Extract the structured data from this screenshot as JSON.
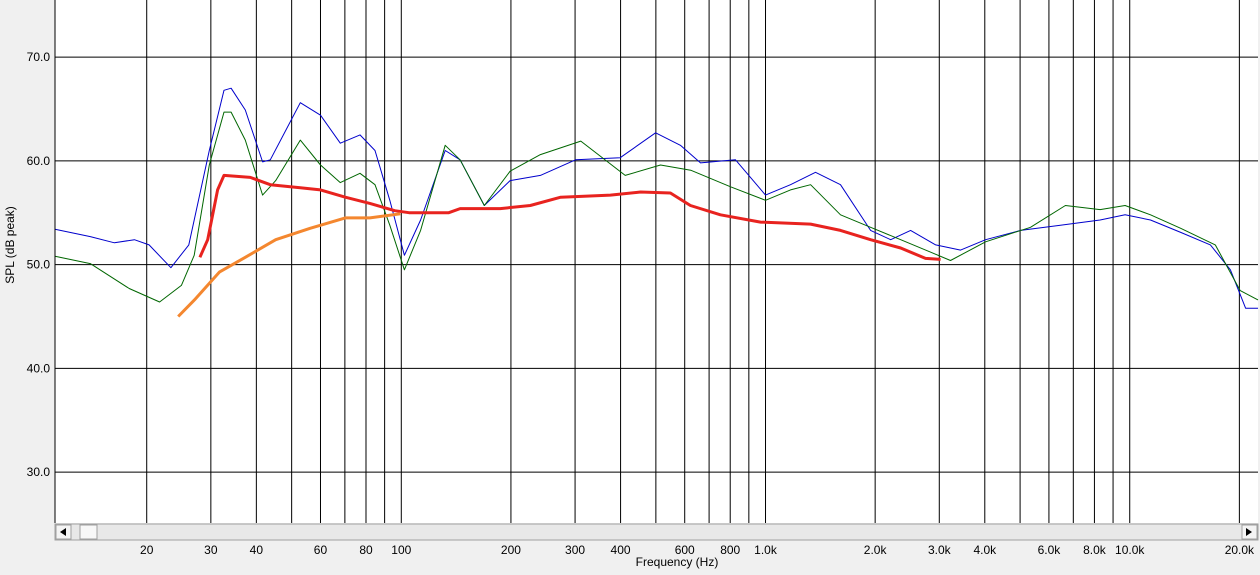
{
  "chart_data": {
    "type": "line",
    "xlabel": "Frequency (Hz)",
    "ylabel": "SPL (dB peak)",
    "xscale": "log",
    "grid": true,
    "xlim": [
      11.2,
      22500
    ],
    "ylim": [
      25.1,
      75.5
    ],
    "xticks": [
      20,
      30,
      40,
      60,
      80,
      100,
      200,
      300,
      400,
      600,
      800,
      {
        "value": 1000,
        "label": "1.0k"
      },
      {
        "value": 2000,
        "label": "2.0k"
      },
      {
        "value": 3000,
        "label": "3.0k"
      },
      {
        "value": 4000,
        "label": "4.0k"
      },
      {
        "value": 6000,
        "label": "6.0k"
      },
      {
        "value": 8000,
        "label": "8.0k"
      },
      {
        "value": 10000,
        "label": "10.0k"
      },
      {
        "value": 20000,
        "label": "20.0k"
      }
    ],
    "xminor": [
      50,
      70,
      90,
      500,
      700,
      900,
      5000,
      7000,
      9000
    ],
    "yticks": [
      {
        "value": 30,
        "label": "30.0"
      },
      {
        "value": 40,
        "label": "40.0"
      },
      {
        "value": 50,
        "label": "50.0"
      },
      {
        "value": 60,
        "label": "60.0"
      },
      {
        "value": 70,
        "label": "70.0"
      }
    ],
    "series": [
      {
        "color": "#0000cc",
        "line_width": 1,
        "x": [
          11.2,
          14.0,
          16.3,
          18.5,
          20.3,
          23.3,
          26.1,
          29.7,
          32.6,
          34.1,
          37.3,
          41.6,
          43.7,
          52.8,
          60,
          68,
          77,
          84.7,
          93,
          102,
          113,
          132,
          145,
          169,
          199,
          241,
          301,
          399,
          499,
          584,
          663,
          827,
          1000,
          1171,
          1372,
          1607,
          1943,
          2206,
          2503,
          2932,
          3433,
          4020,
          5020,
          6453,
          8294,
          9714,
          11400,
          13800,
          16650,
          18900,
          20800,
          22500
        ],
        "values": [
          53.4,
          52.7,
          52.1,
          52.4,
          51.9,
          49.7,
          51.9,
          61.0,
          66.8,
          67.0,
          64.9,
          59.9,
          60.1,
          65.6,
          64.4,
          61.7,
          62.5,
          61.0,
          56.2,
          50.9,
          54.3,
          61.0,
          60.1,
          55.7,
          58.1,
          58.6,
          60.1,
          60.3,
          62.7,
          61.5,
          59.8,
          60.1,
          56.7,
          57.7,
          58.9,
          57.7,
          53.3,
          52.4,
          53.3,
          51.9,
          51.4,
          52.4,
          53.3,
          53.8,
          54.3,
          54.8,
          54.3,
          53.1,
          51.9,
          49.5,
          45.8,
          45.8
        ]
      },
      {
        "color": "#006600",
        "line_width": 1,
        "x": [
          11.2,
          14.0,
          17.9,
          21.7,
          24.9,
          27.0,
          29.7,
          32.6,
          34.1,
          37.3,
          41.6,
          45.2,
          52.8,
          60,
          68,
          77,
          84.7,
          93,
          102,
          113,
          132,
          145,
          169,
          199,
          241,
          311,
          412,
          515,
          623,
          802,
          1000,
          1171,
          1330,
          1607,
          1943,
          2350,
          2841,
          3220,
          4020,
          5340,
          6660,
          8294,
          9714,
          11400,
          13800,
          17180,
          20100,
          22500
        ],
        "values": [
          50.8,
          50.1,
          47.7,
          46.4,
          48.0,
          50.9,
          59.6,
          64.7,
          64.7,
          62.0,
          56.7,
          58.1,
          62.0,
          59.6,
          57.9,
          58.8,
          57.7,
          53.8,
          49.5,
          53.3,
          61.5,
          60.1,
          55.7,
          59.0,
          60.6,
          61.9,
          58.6,
          59.6,
          59.1,
          57.5,
          56.2,
          57.2,
          57.7,
          54.8,
          53.6,
          52.4,
          51.2,
          50.4,
          52.2,
          53.6,
          55.7,
          55.3,
          55.7,
          54.8,
          53.5,
          51.9,
          47.5,
          46.6
        ]
      },
      {
        "color": "#e8231f",
        "line_width": 3,
        "x": [
          28.0,
          29.4,
          31.3,
          32.6,
          38.5,
          43.7,
          52.8,
          60,
          70.2,
          82,
          96,
          105,
          135,
          145,
          187,
          226,
          274,
          375,
          454,
          548,
          622,
          752,
          969,
          1330,
          1607,
          1943,
          2350,
          2750,
          3025
        ],
        "values": [
          50.7,
          52.4,
          57.2,
          58.6,
          58.4,
          57.7,
          57.4,
          57.2,
          56.5,
          55.9,
          55.2,
          55.0,
          55.0,
          55.4,
          55.4,
          55.7,
          56.5,
          56.7,
          57.0,
          56.9,
          55.7,
          54.8,
          54.1,
          53.9,
          53.3,
          52.4,
          51.6,
          50.6,
          50.5
        ]
      },
      {
        "color": "#f4872f",
        "line_width": 3,
        "x": [
          24.4,
          27.2,
          31.7,
          37.3,
          45.2,
          56.2,
          70.2,
          82,
          99.4
        ],
        "values": [
          45.0,
          46.7,
          49.3,
          50.7,
          52.4,
          53.5,
          54.5,
          54.5,
          54.9
        ]
      }
    ]
  }
}
